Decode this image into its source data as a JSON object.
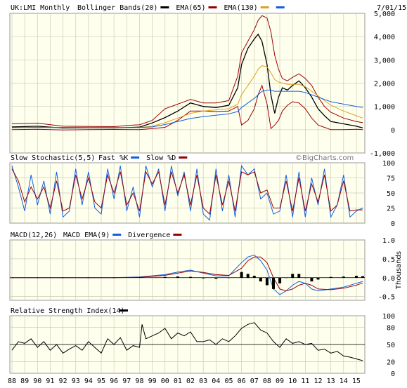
{
  "chart_data": [
    {
      "type": "line",
      "panel": "price",
      "title": "UK:LMI Monthly",
      "date_label": "7/01/15",
      "legend": [
        {
          "label": "Bollinger Bands(20)",
          "color": "#000000"
        },
        {
          "label": "EMA(65)",
          "color": "#990000"
        },
        {
          "label": "EMA(130)",
          "color": "#e0a020"
        },
        {
          "label": "",
          "color": "#1060e0"
        }
      ],
      "y_ticks": [
        "5,000",
        "4,000",
        "3,000",
        "2,000",
        "1,000",
        "0",
        "-1,000"
      ],
      "ylim": [
        -1000,
        5000
      ],
      "x": [
        1988,
        1990,
        1992,
        1994,
        1996,
        1997.5,
        1998,
        1999,
        2000,
        2001,
        2002,
        2003,
        2004,
        2005,
        2005.7,
        2006,
        2006.5,
        2007,
        2007.3,
        2007.6,
        2008,
        2008.3,
        2008.6,
        2008.9,
        2009.2,
        2009.6,
        2010,
        2010.5,
        2011,
        2011.5,
        2012,
        2012.5,
        2013,
        2014,
        2015,
        2015.5
      ],
      "series": [
        {
          "name": "Price",
          "color": "#000000",
          "values": [
            120,
            150,
            70,
            80,
            70,
            100,
            110,
            290,
            520,
            800,
            1150,
            1000,
            950,
            1050,
            1800,
            2800,
            3500,
            3900,
            4100,
            3800,
            2800,
            1500,
            700,
            1400,
            1800,
            1700,
            1900,
            2100,
            1800,
            1400,
            900,
            600,
            350,
            250,
            150,
            80
          ]
        },
        {
          "name": "Bollinger Upper",
          "color": "#990000",
          "values": [
            250,
            280,
            150,
            140,
            130,
            200,
            210,
            400,
            900,
            1100,
            1300,
            1150,
            1150,
            1250,
            2300,
            3300,
            3800,
            4300,
            4700,
            4900,
            4800,
            4200,
            3200,
            2600,
            2200,
            2100,
            2250,
            2400,
            2200,
            1900,
            1400,
            1000,
            750,
            500,
            350,
            300
          ]
        },
        {
          "name": "Bollinger Lower",
          "color": "#990000",
          "values": [
            0,
            20,
            -10,
            0,
            10,
            0,
            0,
            50,
            100,
            400,
            800,
            800,
            780,
            800,
            1000,
            200,
            400,
            900,
            1500,
            1900,
            1100,
            50,
            200,
            400,
            800,
            1050,
            1200,
            1150,
            900,
            500,
            200,
            100,
            0,
            0,
            20,
            0
          ]
        },
        {
          "name": "EMA(65)",
          "color": "#e0a020",
          "values": [
            80,
            100,
            90,
            85,
            80,
            85,
            90,
            150,
            300,
            500,
            700,
            800,
            850,
            900,
            1100,
            1500,
            1900,
            2300,
            2600,
            2750,
            2700,
            2450,
            2150,
            2050,
            2000,
            1950,
            1950,
            1950,
            1850,
            1650,
            1450,
            1250,
            1050,
            800,
            600,
            500
          ]
        },
        {
          "name": "EMA(130)",
          "color": "#1060e0",
          "values": [
            90,
            95,
            95,
            90,
            90,
            90,
            90,
            120,
            220,
            350,
            480,
            560,
            620,
            680,
            780,
            950,
            1150,
            1350,
            1500,
            1650,
            1700,
            1700,
            1650,
            1650,
            1650,
            1650,
            1650,
            1650,
            1600,
            1500,
            1400,
            1300,
            1200,
            1100,
            1000,
            950
          ]
        }
      ]
    },
    {
      "type": "line",
      "panel": "stochastic",
      "title": "Slow Stochastic(5,5)",
      "legend": [
        {
          "label": "Fast %K",
          "color": "#1060e0"
        },
        {
          "label": "Slow %D",
          "color": "#990000"
        }
      ],
      "watermark": "©BigCharts.com",
      "y_ticks": [
        "100",
        "75",
        "50",
        "25",
        "0"
      ],
      "ylim": [
        0,
        100
      ],
      "x": [
        1988,
        1988.5,
        1989,
        1989.5,
        1990,
        1990.5,
        1991,
        1991.5,
        1992,
        1992.5,
        1993,
        1993.5,
        1994,
        1994.5,
        1995,
        1995.5,
        1996,
        1996.5,
        1997,
        1997.5,
        1998,
        1998.5,
        1999,
        1999.5,
        2000,
        2000.5,
        2001,
        2001.5,
        2002,
        2002.5,
        2003,
        2003.5,
        2004,
        2004.5,
        2005,
        2005.5,
        2006,
        2006.5,
        2007,
        2007.5,
        2008,
        2008.5,
        2009,
        2009.5,
        2010,
        2010.5,
        2011,
        2011.5,
        2012,
        2012.5,
        2013,
        2013.5,
        2014,
        2014.5,
        2015,
        2015.5
      ],
      "series": [
        {
          "name": "Fast %K",
          "color": "#1060e0",
          "values": [
            95,
            60,
            20,
            80,
            30,
            70,
            15,
            85,
            10,
            20,
            90,
            30,
            85,
            25,
            15,
            90,
            40,
            95,
            20,
            60,
            10,
            95,
            60,
            90,
            20,
            95,
            45,
            85,
            20,
            90,
            15,
            5,
            90,
            20,
            80,
            10,
            95,
            80,
            90,
            40,
            50,
            15,
            20,
            80,
            10,
            85,
            10,
            75,
            30,
            90,
            10,
            30,
            80,
            10,
            20,
            25
          ]
        },
        {
          "name": "Slow %D",
          "color": "#990000",
          "values": [
            90,
            70,
            35,
            60,
            40,
            60,
            25,
            70,
            20,
            25,
            80,
            40,
            75,
            35,
            25,
            80,
            50,
            85,
            30,
            50,
            20,
            85,
            65,
            85,
            30,
            85,
            50,
            80,
            30,
            80,
            25,
            15,
            80,
            30,
            70,
            20,
            85,
            80,
            85,
            50,
            55,
            25,
            25,
            70,
            20,
            75,
            20,
            65,
            35,
            80,
            20,
            30,
            70,
            20,
            22,
            22
          ]
        }
      ]
    },
    {
      "type": "line",
      "panel": "macd",
      "title": "MACD(12,26)",
      "legend": [
        {
          "label": "MACD EMA(9)",
          "color": "#1060e0"
        },
        {
          "label": "Divergence",
          "color": "#990000"
        }
      ],
      "ylabel": "Thousands",
      "y_ticks": [
        "1.0",
        "0.5",
        "0.0",
        "-0.5"
      ],
      "ylim": [
        -0.6,
        1.0
      ],
      "x": [
        1988,
        1990,
        1992,
        1994,
        1996,
        1998,
        2000,
        2001,
        2002,
        2003,
        2004,
        2005,
        2006,
        2006.5,
        2007,
        2007.5,
        2008,
        2008.5,
        2009,
        2009.5,
        2010,
        2010.5,
        2011,
        2011.5,
        2012,
        2013,
        2014,
        2015,
        2015.5
      ],
      "series": [
        {
          "name": "MACD",
          "color": "#1060e0",
          "values": [
            0,
            0,
            0,
            0,
            0,
            0.02,
            0.08,
            0.15,
            0.2,
            0.12,
            0.05,
            0.05,
            0.4,
            0.55,
            0.6,
            0.45,
            0.2,
            -0.3,
            -0.45,
            -0.35,
            -0.2,
            -0.1,
            -0.15,
            -0.3,
            -0.35,
            -0.3,
            -0.25,
            -0.15,
            -0.1
          ]
        },
        {
          "name": "MACD EMA(9)",
          "color": "#990000",
          "values": [
            0,
            0,
            0,
            0,
            0,
            0.01,
            0.06,
            0.12,
            0.18,
            0.14,
            0.08,
            0.06,
            0.25,
            0.45,
            0.55,
            0.55,
            0.4,
            0.0,
            -0.3,
            -0.35,
            -0.3,
            -0.2,
            -0.15,
            -0.2,
            -0.3,
            -0.32,
            -0.28,
            -0.2,
            -0.14
          ]
        },
        {
          "name": "Divergence",
          "color": "#000000",
          "values": [
            0,
            0,
            0,
            0,
            0,
            0.01,
            0.02,
            0.03,
            0.02,
            -0.02,
            -0.03,
            -0.01,
            0.15,
            0.1,
            0.05,
            -0.1,
            -0.2,
            -0.3,
            -0.15,
            0.0,
            0.1,
            0.1,
            0.0,
            -0.1,
            -0.05,
            0.02,
            0.03,
            0.05,
            0.04
          ]
        }
      ]
    },
    {
      "type": "line",
      "panel": "rsi",
      "title": "Relative Strength Index(14)",
      "legend": [
        {
          "label": "",
          "color": "#000000"
        }
      ],
      "y_ticks": [
        "100",
        "80",
        "50",
        "20",
        "0"
      ],
      "ylim": [
        0,
        100
      ],
      "ref_line": 50,
      "x": [
        1988,
        1988.5,
        1989,
        1989.5,
        1990,
        1990.5,
        1991,
        1991.5,
        1992,
        1992.5,
        1993,
        1993.5,
        1994,
        1994.5,
        1995,
        1995.5,
        1996,
        1996.5,
        1997,
        1997.5,
        1998,
        1998.2,
        1998.5,
        1999,
        1999.5,
        2000,
        2000.5,
        2001,
        2001.5,
        2002,
        2002.5,
        2003,
        2003.5,
        2004,
        2004.5,
        2005,
        2005.5,
        2006,
        2006.5,
        2007,
        2007.5,
        2008,
        2008.5,
        2009,
        2009.5,
        2010,
        2010.5,
        2011,
        2011.5,
        2012,
        2012.5,
        2013,
        2013.5,
        2014,
        2014.5,
        2015,
        2015.5
      ],
      "series": [
        {
          "name": "RSI",
          "color": "#000000",
          "values": [
            40,
            55,
            52,
            60,
            45,
            55,
            40,
            50,
            35,
            42,
            48,
            40,
            55,
            45,
            35,
            60,
            50,
            62,
            40,
            48,
            45,
            85,
            60,
            65,
            70,
            78,
            60,
            70,
            65,
            72,
            55,
            55,
            58,
            50,
            60,
            55,
            65,
            78,
            85,
            88,
            75,
            70,
            55,
            45,
            60,
            52,
            55,
            50,
            52,
            40,
            42,
            35,
            38,
            30,
            28,
            25,
            22
          ]
        }
      ]
    }
  ],
  "x_axis": {
    "tick_labels": [
      "88",
      "89",
      "90",
      "91",
      "92",
      "93",
      "94",
      "95",
      "96",
      "97",
      "98",
      "99",
      "00",
      "01",
      "02",
      "03",
      "04",
      "05",
      "06",
      "07",
      "08",
      "09",
      "10",
      "11",
      "12",
      "13",
      "14",
      "15"
    ],
    "start_year": 1988,
    "end_year": 2015.5
  },
  "colors": {
    "panel_bg": "#ffffee",
    "grid": "#ccccb8",
    "frame": "#999999"
  }
}
